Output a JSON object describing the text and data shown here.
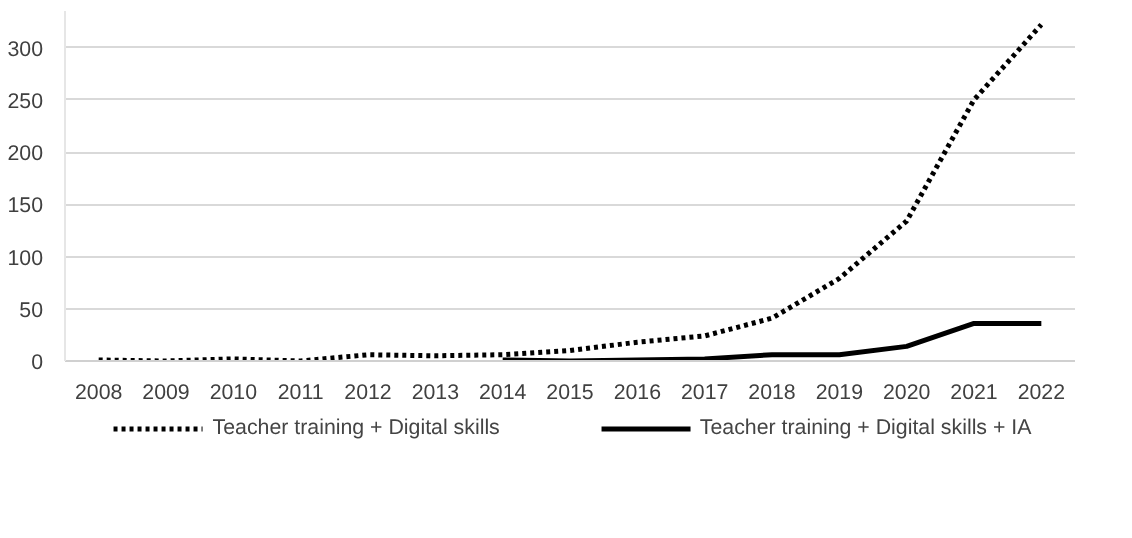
{
  "chart_data": {
    "type": "line",
    "categories": [
      "2008",
      "2009",
      "2010",
      "2011",
      "2012",
      "2013",
      "2014",
      "2015",
      "2016",
      "2017",
      "2018",
      "2019",
      "2020",
      "2021",
      "2022"
    ],
    "series": [
      {
        "name": "Teacher training + Digital skills",
        "color": "#000000",
        "line_style": "dotted",
        "values": [
          1,
          0,
          2,
          0,
          6,
          5,
          6,
          10,
          18,
          24,
          41,
          79,
          134,
          250,
          322
        ]
      },
      {
        "name": "Teacher training + Digital skills + IA",
        "color": "#000000",
        "line_style": "solid",
        "values": [
          null,
          null,
          null,
          null,
          null,
          null,
          1,
          0,
          1,
          2,
          6,
          6,
          14,
          36,
          36
        ]
      }
    ],
    "ylim": [
      0,
      335
    ],
    "yticks": [
      0,
      50,
      100,
      150,
      200,
      250,
      300
    ],
    "grid": "y",
    "legend": "bottom",
    "marker": "none"
  }
}
